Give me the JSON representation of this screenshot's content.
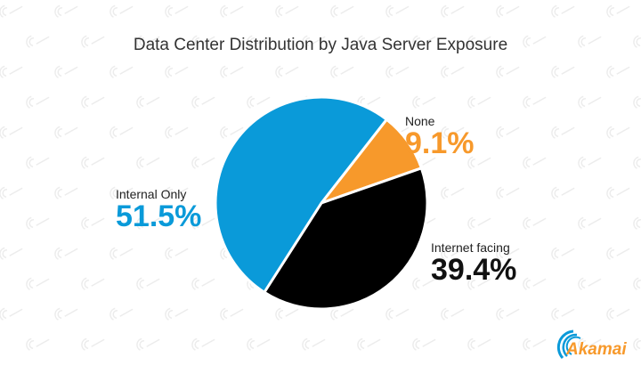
{
  "chart_data": {
    "type": "pie",
    "title": "Data Center Distribution by Java Server Exposure",
    "start_angle_deg": 38,
    "slices": [
      {
        "label": "None",
        "value": 9.1,
        "display": "9.1%",
        "color": "#f7992b"
      },
      {
        "label": "Internet facing",
        "value": 39.4,
        "display": "39.4%",
        "color": "#000000"
      },
      {
        "label": "Internal Only",
        "value": 51.5,
        "display": "51.5%",
        "color": "#0a9ad9"
      }
    ]
  },
  "brand": {
    "logo_text": "Akamai",
    "logo_color": "#f7992b",
    "wave_color": "#0a9ad9"
  }
}
